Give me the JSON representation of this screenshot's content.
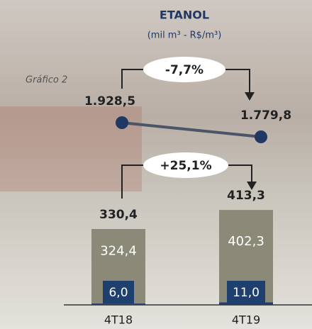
{
  "caption": "Gráfico 2",
  "chart_data": [
    {
      "type": "line",
      "title": "ETANOL",
      "subtitle": "(mil m³ - R$/m³)",
      "values": [
        1928.5,
        1779.8
      ],
      "value_labels": [
        "1.928,5",
        "1.779,8"
      ],
      "color": "#1f3864",
      "annotation": "-7,7%"
    },
    {
      "type": "bar",
      "stacked": true,
      "categories": [
        "4T18",
        "4T19"
      ],
      "series": [
        {
          "color": "#1f3f6e",
          "values": [
            6.0,
            11.0
          ],
          "value_labels": [
            "6,0",
            "11,0"
          ]
        },
        {
          "color": "#8b8a78",
          "values": [
            324.4,
            402.3
          ],
          "value_labels": [
            "324,4",
            "402,3"
          ]
        }
      ],
      "totals": [
        330.4,
        413.3
      ],
      "total_labels": [
        "330,4",
        "413,3"
      ],
      "annotation": "+25,1%"
    }
  ]
}
